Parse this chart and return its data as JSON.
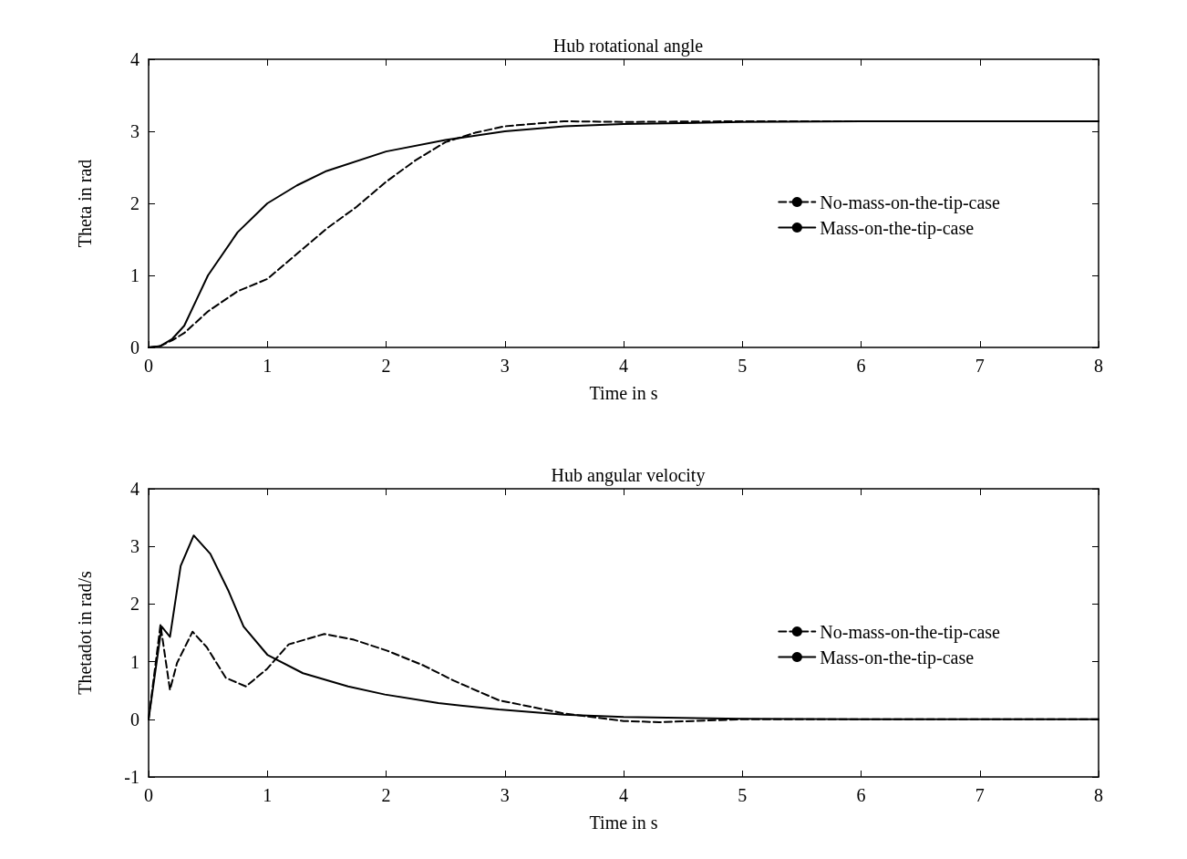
{
  "chart_data": [
    {
      "type": "line",
      "title": "Hub rotational angle",
      "xlabel": "Time in s",
      "ylabel": "Theta in rad",
      "xlim": [
        0,
        8
      ],
      "xticks": [
        0,
        1,
        2,
        3,
        4,
        5,
        6,
        7,
        8
      ],
      "ylim": [
        0,
        4
      ],
      "yticks": [
        0,
        1,
        2,
        3,
        4
      ],
      "grid": false,
      "legend": "right",
      "marker": "none",
      "series": [
        {
          "name": "No-mass-on-the-tip-case",
          "color": "#000000",
          "line_style": "dashed",
          "x": [
            0,
            0.1,
            0.2,
            0.3,
            0.5,
            0.75,
            1,
            1.25,
            1.5,
            1.75,
            2,
            2.25,
            2.5,
            2.75,
            3,
            3.5,
            4,
            5,
            6,
            7,
            8
          ],
          "values": [
            0,
            0.02,
            0.1,
            0.2,
            0.5,
            0.78,
            0.95,
            1.3,
            1.65,
            1.95,
            2.3,
            2.6,
            2.85,
            2.98,
            3.07,
            3.14,
            3.13,
            3.14,
            3.14,
            3.14,
            3.14
          ]
        },
        {
          "name": "Mass-on-the-tip-case",
          "color": "#000000",
          "line_style": "solid",
          "x": [
            0,
            0.1,
            0.2,
            0.3,
            0.4,
            0.5,
            0.75,
            1,
            1.25,
            1.5,
            2,
            2.5,
            3,
            3.5,
            4,
            5,
            6,
            7,
            8
          ],
          "values": [
            0,
            0.02,
            0.12,
            0.3,
            0.65,
            1.0,
            1.6,
            2.0,
            2.25,
            2.45,
            2.72,
            2.88,
            3.0,
            3.07,
            3.1,
            3.13,
            3.14,
            3.14,
            3.14
          ]
        }
      ]
    },
    {
      "type": "line",
      "title": "Hub angular velocity",
      "xlabel": "Time in s",
      "ylabel": "Thetadot in rad/s",
      "xlim": [
        0,
        8
      ],
      "xticks": [
        0,
        1,
        2,
        3,
        4,
        5,
        6,
        7,
        8
      ],
      "ylim": [
        -1,
        4
      ],
      "yticks": [
        -1,
        0,
        1,
        2,
        3,
        4
      ],
      "grid": false,
      "legend": "right",
      "marker": "none",
      "series": [
        {
          "name": "No-mass-on-the-tip-case",
          "color": "#000000",
          "line_style": "dashed",
          "x": [
            0,
            0.1,
            0.18,
            0.24,
            0.37,
            0.49,
            0.65,
            0.82,
            1.0,
            1.18,
            1.48,
            1.73,
            2.01,
            2.32,
            2.57,
            2.95,
            3.5,
            4,
            4.3,
            5,
            6,
            7,
            8
          ],
          "values": [
            0,
            1.64,
            0.51,
            0.98,
            1.52,
            1.25,
            0.72,
            0.57,
            0.88,
            1.3,
            1.48,
            1.38,
            1.19,
            0.93,
            0.67,
            0.33,
            0.1,
            -0.03,
            -0.05,
            0,
            0,
            0,
            0
          ]
        },
        {
          "name": "Mass-on-the-tip-case",
          "color": "#000000",
          "line_style": "solid",
          "x": [
            0,
            0.11,
            0.18,
            0.27,
            0.38,
            0.52,
            0.67,
            0.8,
            1.0,
            1.3,
            1.68,
            1.99,
            2.44,
            2.95,
            3.5,
            4,
            5,
            6,
            7,
            8
          ],
          "values": [
            0,
            1.61,
            1.43,
            2.66,
            3.19,
            2.87,
            2.24,
            1.61,
            1.12,
            0.8,
            0.57,
            0.43,
            0.28,
            0.17,
            0.08,
            0.04,
            0.01,
            0,
            0,
            0
          ]
        }
      ]
    }
  ]
}
